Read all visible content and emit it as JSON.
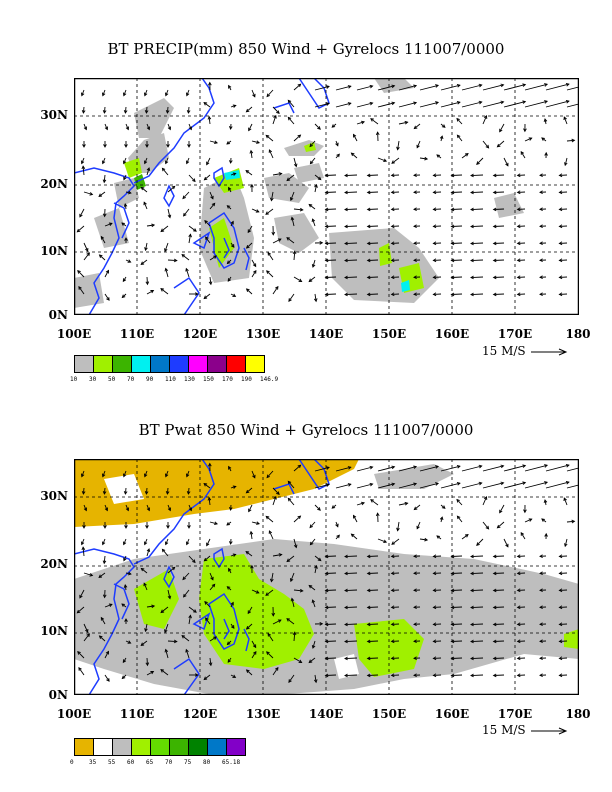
{
  "panels": [
    {
      "title": "BT PRECIP(mm) 850 Wind + Gyrelocs 111007/0000",
      "lat_labels": [
        "30N",
        "20N",
        "10N",
        "0N"
      ],
      "lon_labels": [
        "100E",
        "110E",
        "120E",
        "130E",
        "140E",
        "150E",
        "160E",
        "170E",
        "180"
      ],
      "scale_label": "15 M/S",
      "legend": {
        "colors": [
          "#bebebe",
          "#a0f000",
          "#3cb400",
          "#00f0f0",
          "#0078c8",
          "#1e3cff",
          "#ff00ff",
          "#8b008b",
          "#ff0000",
          "#ffff00"
        ],
        "labels": [
          "10",
          "30",
          "50",
          "70",
          "90",
          "110",
          "130",
          "150",
          "170",
          "190",
          "146.9"
        ]
      }
    },
    {
      "title": "BT Pwat 850 Wind + Gyrelocs 111007/0000",
      "lat_labels": [
        "30N",
        "20N",
        "10N",
        "0N"
      ],
      "lon_labels": [
        "100E",
        "110E",
        "120E",
        "130E",
        "140E",
        "150E",
        "160E",
        "170E",
        "180"
      ],
      "scale_label": "15 M/S",
      "legend": {
        "colors": [
          "#e6b400",
          "#ffffff",
          "#bebebe",
          "#a0f000",
          "#64dc00",
          "#3cb400",
          "#008200",
          "#0078c8",
          "#8200c8"
        ],
        "labels": [
          "0",
          "35",
          "55",
          "60",
          "65",
          "70",
          "75",
          "80",
          "65.18"
        ]
      }
    }
  ]
}
